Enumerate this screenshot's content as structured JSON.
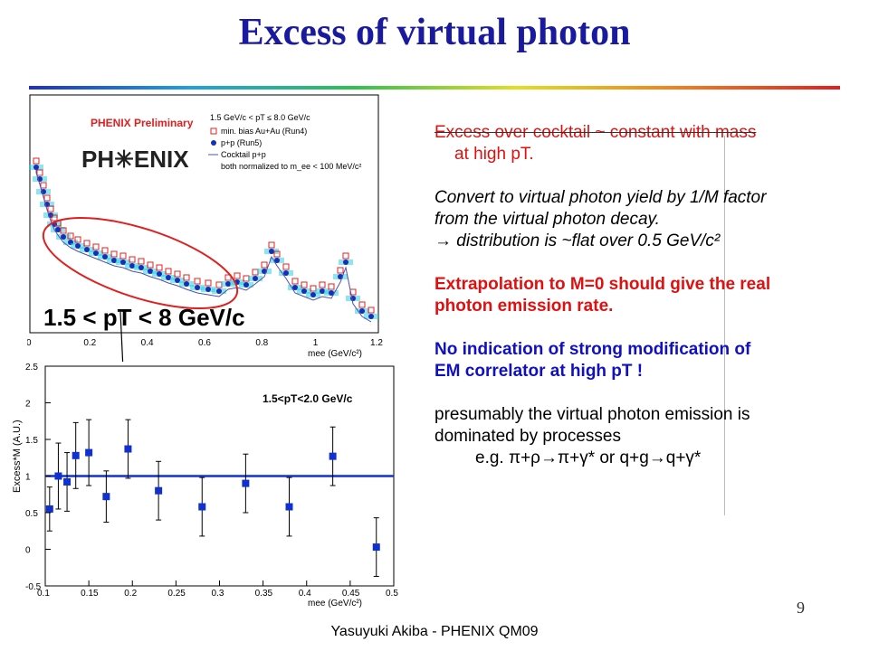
{
  "title": "Excess of virtual photon",
  "top_plot": {
    "legend_title": "PHENIX Preliminary",
    "logo_text": "PH✳ENIX",
    "legend_range": "1.5 GeV/c < pT ≤ 8.0 GeV/c",
    "legend_entries": [
      "min. bias Au+Au (Run4)",
      "p+p (Run5)",
      "Cocktail p+p",
      "both normalized to m_ee < 100 MeV/c²"
    ],
    "annotation": "1.5 < pT < 8 GeV/c",
    "xlabel": "mee (GeV/c²)",
    "xticks": [
      "0",
      "0.2",
      "0.4",
      "0.6",
      "0.8",
      "1",
      "1.2"
    ]
  },
  "chart_data": [
    {
      "type": "scatter",
      "title": "",
      "xlabel": "mee (GeV/c²)",
      "ylabel": "Excess*M (A.U.)",
      "annotation": "1.5<pT<2.0 GeV/c",
      "xlim": [
        0.1,
        0.5
      ],
      "ylim": [
        -0.5,
        2.5
      ],
      "x": [
        0.105,
        0.115,
        0.125,
        0.135,
        0.15,
        0.17,
        0.195,
        0.23,
        0.28,
        0.33,
        0.38,
        0.43,
        0.48
      ],
      "y": [
        0.55,
        1.0,
        0.92,
        1.28,
        1.32,
        0.72,
        1.37,
        0.8,
        0.58,
        0.9,
        0.58,
        1.27,
        0.03
      ],
      "yerr": [
        0.3,
        0.45,
        0.4,
        0.45,
        0.45,
        0.35,
        0.4,
        0.4,
        0.4,
        0.4,
        0.4,
        0.4,
        0.4
      ],
      "fit_line": 1.0,
      "xticks": [
        "0.1",
        "0.15",
        "0.2",
        "0.25",
        "0.3",
        "0.35",
        "0.4",
        "0.45",
        "0.5"
      ],
      "yticks": [
        "-0.5",
        "0",
        "0.5",
        "1",
        "1.5",
        "2",
        "2.5"
      ]
    }
  ],
  "text": {
    "line1": "Excess over cocktail ~ constant with mass",
    "line2": "at high pT.",
    "line3": "Convert to virtual photon yield by 1/M factor",
    "line4": "from the virtual photon decay.",
    "line5": "→ distribution is ~flat over 0.5 GeV/c²",
    "line6": "Extrapolation to M=0 should give the real",
    "line7": "photon emission rate.",
    "line8": "No indication of strong modification of",
    "line9": "EM correlator at high pT !",
    "line10": "presumably the virtual photon emission is",
    "line11": "dominated by processes",
    "line12": "e.g. π+ρ→π+γ* or q+g→q+γ*"
  },
  "page_number": "9",
  "footer": "Yasuyuki Akiba - PHENIX QM09"
}
